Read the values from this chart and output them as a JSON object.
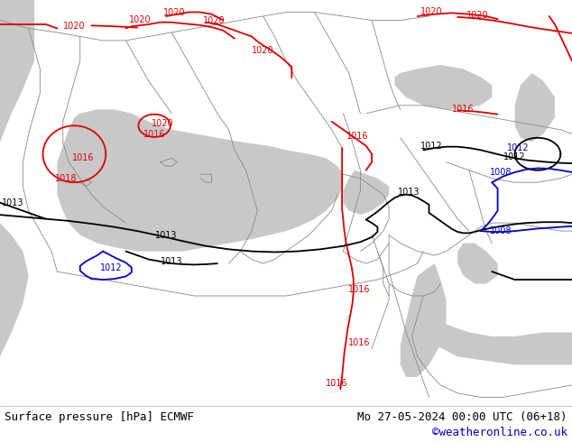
{
  "title_left": "Surface pressure [hPa] ECMWF",
  "title_right": "Mo 27-05-2024 00:00 UTC (06+18)",
  "copyright": "©weatheronline.co.uk",
  "land_color": "#a8e080",
  "sea_color": "#c8c8c8",
  "border_color": "#888888",
  "isobar_red": "#dd0000",
  "isobar_black": "#000000",
  "isobar_blue": "#0000cc",
  "footer_bg": "#ffffff",
  "footer_text_color": "#000000",
  "copyright_color": "#0000cc",
  "font_size_footer": 9,
  "font_size_label": 7
}
